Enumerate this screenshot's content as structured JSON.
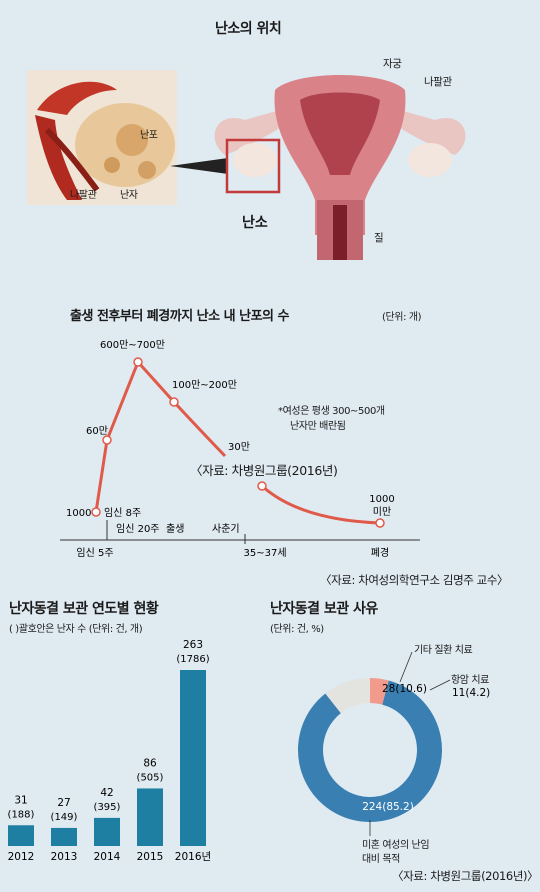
{
  "top": {
    "title": "난소의 위치",
    "inset_labels": {
      "follicle": "난포",
      "tube": "나팔관",
      "egg": "난자"
    },
    "organ_labels": {
      "uterus": "자궁",
      "tube": "나팔관",
      "ovary": "난소",
      "vagina": "질"
    }
  },
  "line_section": {
    "title": "출생 전후부터 폐경까지 난소 내 난포의 수",
    "unit": "(단위: 개)",
    "note": [
      "*여성은 평생 300~500개",
      "난자만 배란됨"
    ],
    "source_inner": "〈자료: 차병원그룹(2016년)",
    "x_axis_labels": [
      "임신 5주",
      "35~37세",
      "폐경"
    ],
    "upper_axis_labels": [
      "임신 8주",
      "임신 20주",
      "출생",
      "사춘기"
    ],
    "source_outer": "〈자료: 차여성의학연구소 김명주 교수〉"
  },
  "bar_section": {
    "title": "난자동결 보관 연도별 현황",
    "subtitle": "( )괄호안은 난자 수  (단위: 건, 개)",
    "bar_color": "#1f7fa3"
  },
  "donut_section": {
    "title": "난자동결 보관 사유",
    "unit": "(단위: 건, %)",
    "labels": {
      "other": "기타 질환 치료",
      "chemo": "항암 치료",
      "single": [
        "미혼 여성의 난임",
        "대비 목적"
      ]
    },
    "source": "〈자료: 차병원그룹(2016년)〉"
  },
  "chart_data": [
    {
      "type": "line",
      "title": "출생 전후부터 폐경까지 난소 내 난포의 수",
      "x": [
        "임신 5주",
        "임신 8주",
        "임신 20주",
        "출생",
        "사춘기",
        "35~37세",
        "폐경"
      ],
      "point_labels": [
        "1000",
        "60만",
        "600만~700만",
        "100만~200만",
        "30만",
        "",
        "1000 미만"
      ],
      "color": "#e05a4a"
    },
    {
      "type": "bar",
      "title": "난자동결 보관 연도별 현황",
      "categories": [
        "2012",
        "2013",
        "2014",
        "2015",
        "2016년"
      ],
      "series": [
        {
          "name": "건",
          "values": [
            31,
            27,
            42,
            86,
            263
          ]
        },
        {
          "name": "난자 수",
          "values": [
            188,
            149,
            395,
            505,
            1786
          ]
        }
      ],
      "value_labels": [
        "31",
        "27",
        "42",
        "86",
        "263"
      ],
      "sub_labels": [
        "(188)",
        "(149)",
        "(395)",
        "(505)",
        "(1786)"
      ]
    },
    {
      "type": "pie",
      "title": "난자동결 보관 사유",
      "categories": [
        "미혼 여성의 난임 대비 목적",
        "기타 질환 치료",
        "항암 치료"
      ],
      "values": [
        224,
        28,
        11
      ],
      "percents": [
        85.2,
        10.6,
        4.2
      ],
      "value_labels": [
        "224(85.2)",
        "28(10.6)",
        "11(4.2)"
      ],
      "colors": [
        "#3a7fb2",
        "#e3e3e0",
        "#f29a8c"
      ]
    }
  ]
}
